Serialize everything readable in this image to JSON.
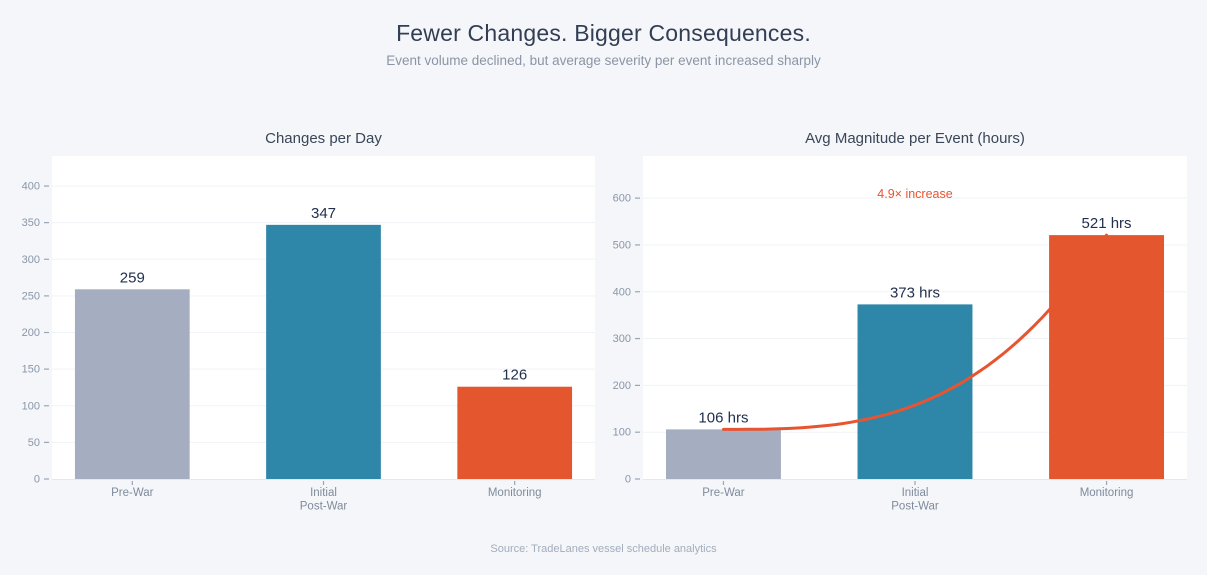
{
  "header": {
    "title": "Fewer Changes. Bigger Consequences.",
    "subtitle": "Event volume declined, but average severity per event increased sharply"
  },
  "footer": {
    "source": "Source: TradeLanes vessel schedule analytics"
  },
  "colors": {
    "background": "#f4f6f9",
    "panel": "#ffffff",
    "grid": "#f0f3f7",
    "baseline": "#e3e8ef",
    "axis_tick": "#9aa5b5",
    "tick_label": "#8a96a9",
    "category_label": "#7f8b9c",
    "value_label": "#22304e",
    "title": "#333e54",
    "subtitle": "#8b95a5",
    "chart_title": "#3a4657",
    "footer": "#a2adbc",
    "bar_gray": "#a4aec0",
    "bar_teal": "#2e86a8",
    "bar_orange": "#e4572e",
    "accent_orange": "#e95430"
  },
  "chart_data": [
    {
      "type": "bar",
      "title": "Changes per Day",
      "categories": [
        "Pre-War",
        "Initial\nPost-War",
        "Monitoring"
      ],
      "values": [
        259,
        347,
        126
      ],
      "value_labels": [
        "259",
        "347",
        "126"
      ],
      "bar_color_keys": [
        "bar_gray",
        "bar_teal",
        "bar_orange"
      ],
      "ylim": [
        0,
        441
      ],
      "yticks": [
        0,
        50,
        100,
        150,
        200,
        250,
        300,
        350,
        400
      ],
      "grid": true,
      "legend": false
    },
    {
      "type": "bar",
      "title": "Avg Magnitude per Event (hours)",
      "categories": [
        "Pre-War",
        "Initial\nPost-War",
        "Monitoring"
      ],
      "values": [
        106,
        373,
        521
      ],
      "value_labels": [
        "106 hrs",
        "373 hrs",
        "521 hrs"
      ],
      "bar_color_keys": [
        "bar_gray",
        "bar_teal",
        "bar_orange"
      ],
      "ylim": [
        0,
        690
      ],
      "yticks": [
        0,
        100,
        200,
        300,
        400,
        500,
        600
      ],
      "grid": true,
      "legend": false,
      "annotation": {
        "text": "4.9× increase",
        "x_category_index": 1,
        "y_value": 600
      },
      "trend_curve": {
        "from_category_index": 0,
        "to_category_index": 2,
        "from_value": 106,
        "to_value": 521,
        "shape": "cubic-ease-in",
        "hidden_behind_last_bar": true
      }
    }
  ]
}
